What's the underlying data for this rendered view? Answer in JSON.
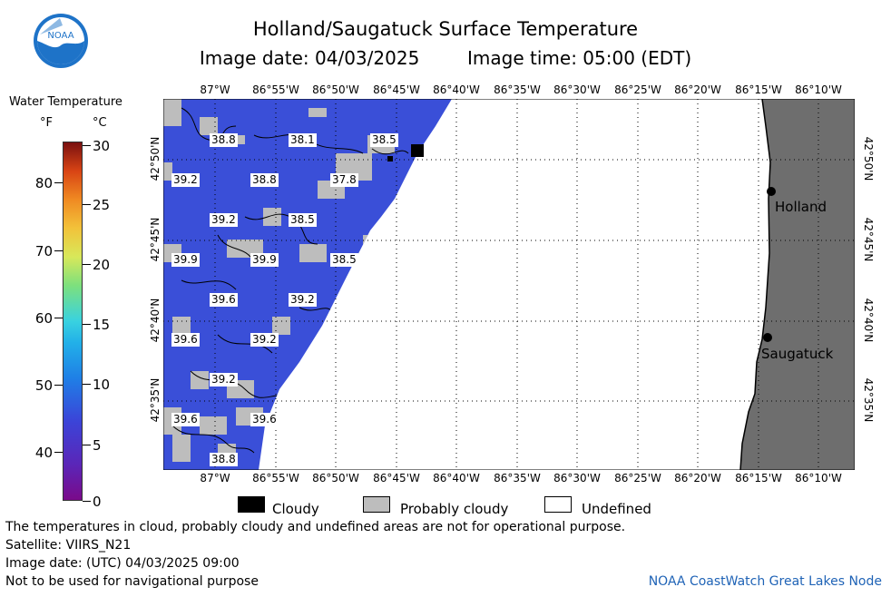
{
  "title": "Holland/Saugatuck Surface Temperature",
  "image_date": "Image date: 04/03/2025",
  "image_time": "Image time: 05:00 (EDT)",
  "logo_text": "NOAA",
  "legend": {
    "title": "Water Temperature",
    "unit_f": "°F",
    "unit_c": "°C",
    "f_ticks": [
      "80",
      "70",
      "60",
      "50",
      "40"
    ],
    "c_ticks": [
      "30",
      "25",
      "20",
      "15",
      "10",
      "5",
      "0"
    ]
  },
  "map": {
    "lon_labels": [
      "87°W",
      "86°55'W",
      "86°50'W",
      "86°45'W",
      "86°40'W",
      "86°35'W",
      "86°30'W",
      "86°25'W",
      "86°20'W",
      "86°15'W",
      "86°10'W"
    ],
    "lat_labels": [
      "42°50'N",
      "42°45'N",
      "42°40'N",
      "42°35'N"
    ],
    "temperature_labels": [
      "38.8",
      "38.1",
      "38.5",
      "39.2",
      "38.8",
      "37.8",
      "39.2",
      "38.5",
      "39.9",
      "39.9",
      "38.5",
      "39.6",
      "39.2",
      "39.6",
      "39.2",
      "39.2",
      "39.6",
      "39.6",
      "38.8"
    ],
    "cities": [
      "Holland",
      "Saugatuck"
    ]
  },
  "key": {
    "cloudy": "Cloudy",
    "probably_cloudy": "Probably cloudy",
    "undefined": "Undefined"
  },
  "notes": {
    "line1": "The temperatures in cloud, probably cloudy and undefined areas are not for operational purpose.",
    "line2": "Satellite: VIIRS_N21",
    "line3": "Image date: (UTC) 04/03/2025  09:00",
    "line4": "Not to be used for navigational purpose"
  },
  "credit": "NOAA CoastWatch Great Lakes Node",
  "colors": {
    "water": "#3a4fd8",
    "cloud_gray": "#bdbdbd",
    "land": "#6e6e6e"
  }
}
